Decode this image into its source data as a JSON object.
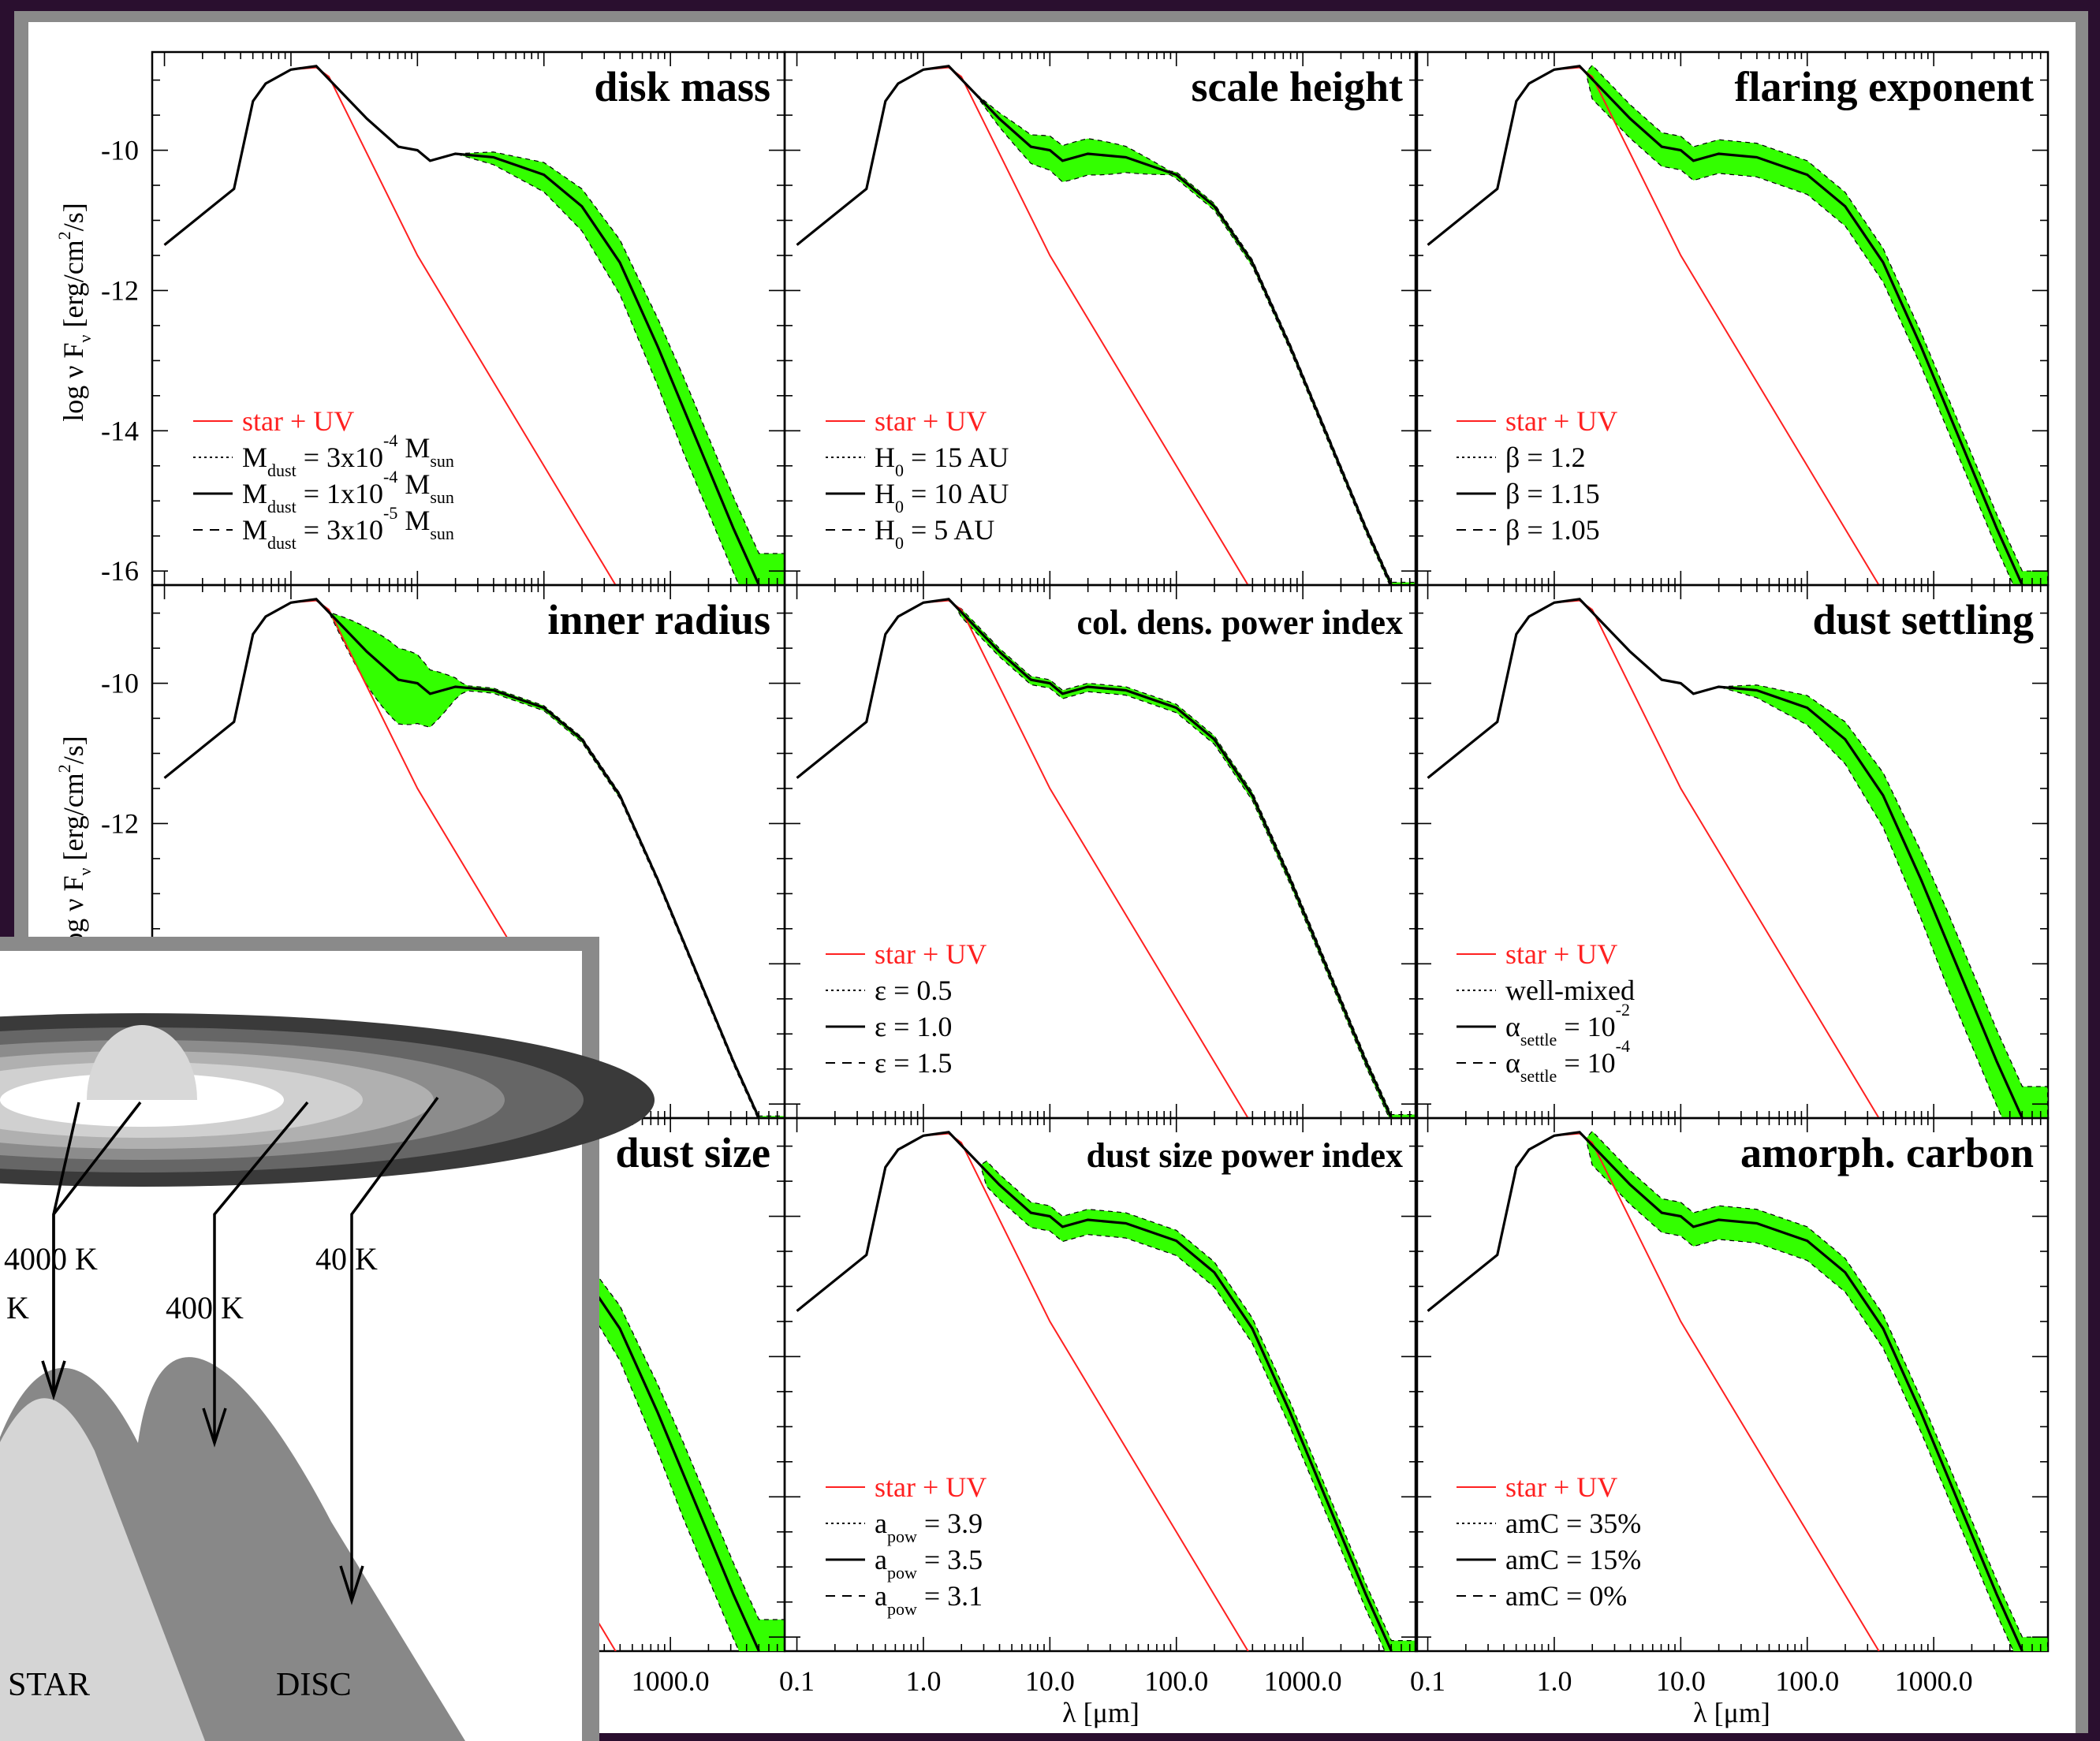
{
  "colors": {
    "background": "#2a0f2f",
    "frame": "#8a8a8a",
    "star": "#ff2020",
    "band": "#33ff00",
    "model": "#000000"
  },
  "axes": {
    "y_label": "log ν F",
    "y_label_sub": "ν",
    "y_label_unit": "[erg/cm",
    "y_label_sup": "2",
    "y_label_end": "/s]",
    "x_label": "λ [μm]",
    "y_ticks": [
      "-10",
      "-12",
      "-14",
      "-16"
    ],
    "x_ticks": [
      "0.1",
      "1.0",
      "10.0",
      "100.0",
      "1000.0"
    ]
  },
  "chart_data": [
    {
      "type": "line",
      "title": "disk mass",
      "legend": [
        {
          "style": "solid",
          "color": "red",
          "text": "star + UV"
        },
        {
          "style": "dotted",
          "parts": [
            "M",
            "dust",
            " = 3x10",
            "-4",
            " M",
            "sun"
          ]
        },
        {
          "style": "solid",
          "parts": [
            "M",
            "dust",
            " = 1x10",
            "-4",
            " M",
            "sun"
          ]
        },
        {
          "style": "dashed",
          "parts": [
            "M",
            "dust",
            " = 3x10",
            "-5",
            " M",
            "sun"
          ]
        }
      ],
      "x_scale": "log",
      "xlim": [
        0.08,
        8000
      ],
      "ylim": [
        -16.2,
        -8.6
      ],
      "band": "far-IR"
    },
    {
      "type": "line",
      "title": "scale height",
      "legend": [
        {
          "style": "solid",
          "color": "red",
          "text": "star + UV"
        },
        {
          "style": "dotted",
          "parts": [
            "H",
            "0",
            " = 15 AU"
          ]
        },
        {
          "style": "solid",
          "parts": [
            "H",
            "0",
            " = 10 AU"
          ]
        },
        {
          "style": "dashed",
          "parts": [
            "H",
            "0",
            " = 5 AU"
          ]
        }
      ],
      "band": "mid-IR"
    },
    {
      "type": "line",
      "title": "flaring exponent",
      "legend": [
        {
          "style": "solid",
          "color": "red",
          "text": "star + UV"
        },
        {
          "style": "dotted",
          "text": "β = 1.2"
        },
        {
          "style": "solid",
          "text": "β = 1.15"
        },
        {
          "style": "dashed",
          "text": "β = 1.05"
        }
      ],
      "band": "broad"
    },
    {
      "type": "line",
      "title": "inner radius",
      "legend": [],
      "band": "near-IR"
    },
    {
      "type": "line",
      "title": "col. dens. power index",
      "legend": [
        {
          "style": "solid",
          "color": "red",
          "text": "star + UV"
        },
        {
          "style": "dotted",
          "text": "ε = 0.5"
        },
        {
          "style": "solid",
          "text": "ε = 1.0"
        },
        {
          "style": "dashed",
          "text": "ε = 1.5"
        }
      ],
      "band": "thin"
    },
    {
      "type": "line",
      "title": "dust settling",
      "legend": [
        {
          "style": "solid",
          "color": "red",
          "text": "star + UV"
        },
        {
          "style": "dotted",
          "text": "well-mixed"
        },
        {
          "style": "solid",
          "parts": [
            "α",
            "settle",
            " = 10",
            "-2"
          ]
        },
        {
          "style": "dashed",
          "parts": [
            "α",
            "settle",
            " = 10",
            "-4"
          ]
        }
      ],
      "band": "far-IR"
    },
    {
      "type": "line",
      "title": "dust size",
      "legend": [],
      "band": "far-IR"
    },
    {
      "type": "line",
      "title": "dust size power index",
      "legend": [
        {
          "style": "solid",
          "color": "red",
          "text": "star + UV"
        },
        {
          "style": "dotted",
          "parts": [
            "a",
            "pow",
            " = 3.9"
          ]
        },
        {
          "style": "solid",
          "parts": [
            "a",
            "pow",
            " = 3.5"
          ]
        },
        {
          "style": "dashed",
          "parts": [
            "a",
            "pow",
            " = 3.1"
          ]
        }
      ],
      "band": "mid-far"
    },
    {
      "type": "line",
      "title": "amorph. carbon",
      "legend": [
        {
          "style": "solid",
          "color": "red",
          "text": "star + UV"
        },
        {
          "style": "dotted",
          "text": "amC = 35%"
        },
        {
          "style": "solid",
          "text": "amC = 15%"
        },
        {
          "style": "dashed",
          "text": "amC = 0%"
        }
      ],
      "band": "broad"
    }
  ],
  "inset": {
    "temps": [
      "4000 K",
      "400 K",
      "40 K",
      "K"
    ],
    "labels": {
      "star": "STAR",
      "disc": "DISC"
    }
  }
}
